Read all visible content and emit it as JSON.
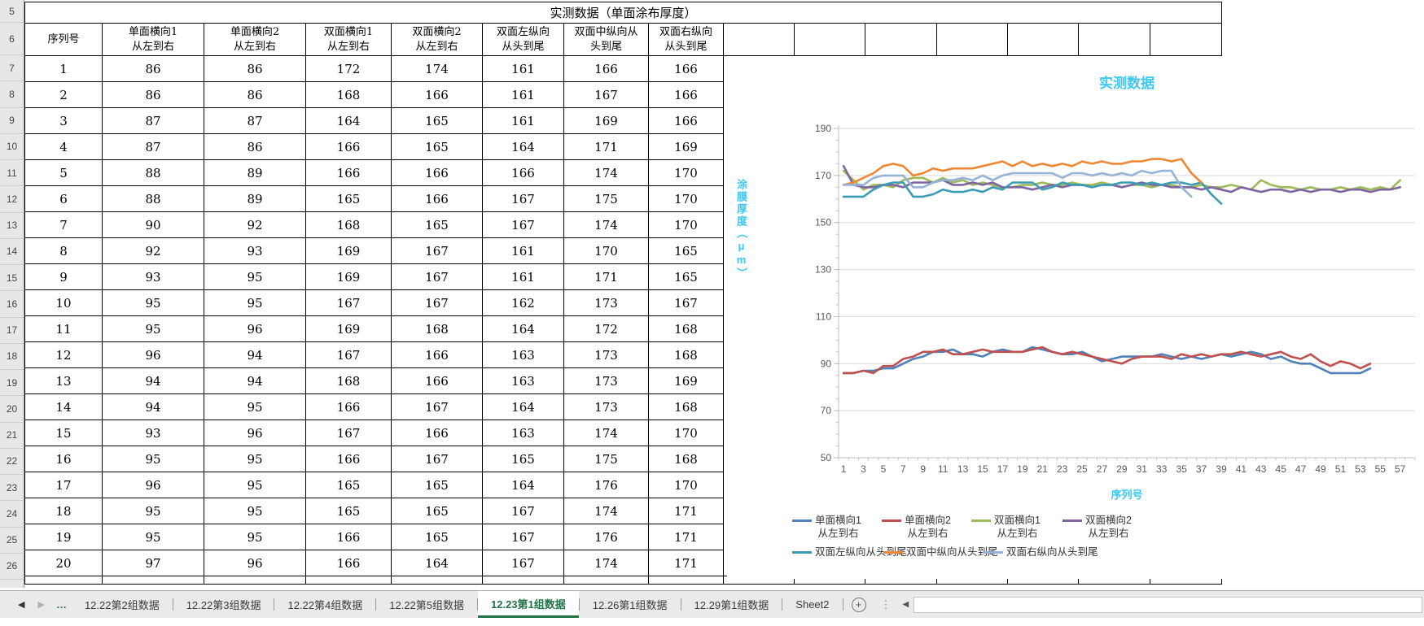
{
  "spreadsheet": {
    "title_row": "实测数据（单面涂布厚度）",
    "row_numbers": [
      "5",
      "6",
      "7",
      "8",
      "9",
      "10",
      "11",
      "12",
      "13",
      "14",
      "15",
      "16",
      "17",
      "18",
      "19",
      "20",
      "21",
      "22",
      "23",
      "24",
      "25",
      "26"
    ],
    "columns": [
      [
        "序列号"
      ],
      [
        "单面横向1",
        "从左到右"
      ],
      [
        "单面横向2",
        "从左到右"
      ],
      [
        "双面横向1",
        "从左到右"
      ],
      [
        "双面横向2",
        "从左到右"
      ],
      [
        "双面左纵向",
        "从头到尾"
      ],
      [
        "双面中纵向从",
        "头到尾"
      ],
      [
        "双面右纵向",
        "从头到尾"
      ]
    ],
    "rows": [
      [
        1,
        86,
        86,
        172,
        174,
        161,
        166,
        166
      ],
      [
        2,
        86,
        86,
        168,
        166,
        161,
        167,
        166
      ],
      [
        3,
        87,
        87,
        164,
        165,
        161,
        169,
        166
      ],
      [
        4,
        87,
        86,
        166,
        165,
        164,
        171,
        169
      ],
      [
        5,
        88,
        89,
        166,
        166,
        166,
        174,
        170
      ],
      [
        6,
        88,
        89,
        165,
        166,
        167,
        175,
        170
      ],
      [
        7,
        90,
        92,
        168,
        165,
        167,
        174,
        170
      ],
      [
        8,
        92,
        93,
        169,
        167,
        161,
        170,
        165
      ],
      [
        9,
        93,
        95,
        169,
        167,
        161,
        171,
        165
      ],
      [
        10,
        95,
        95,
        167,
        167,
        162,
        173,
        167
      ],
      [
        11,
        95,
        96,
        169,
        168,
        164,
        172,
        168
      ],
      [
        12,
        96,
        94,
        167,
        166,
        163,
        173,
        168
      ],
      [
        13,
        94,
        94,
        168,
        166,
        163,
        173,
        169
      ],
      [
        14,
        94,
        95,
        166,
        167,
        164,
        173,
        168
      ],
      [
        15,
        93,
        96,
        167,
        166,
        163,
        174,
        170
      ],
      [
        16,
        95,
        95,
        166,
        167,
        165,
        175,
        168
      ],
      [
        17,
        96,
        95,
        165,
        165,
        164,
        176,
        170
      ],
      [
        18,
        95,
        95,
        165,
        165,
        167,
        174,
        171
      ],
      [
        19,
        95,
        95,
        166,
        165,
        167,
        176,
        171
      ],
      [
        20,
        97,
        96,
        166,
        164,
        167,
        174,
        171
      ]
    ]
  },
  "chart_data": {
    "type": "line",
    "title": "实测数据",
    "xlabel": "序列号",
    "ylabel": "涂膜厚度（μm）",
    "ylim": [
      50,
      190
    ],
    "ytick_step": 20,
    "yticks": [
      50,
      70,
      90,
      110,
      130,
      150,
      170,
      190
    ],
    "x_range": [
      1,
      58
    ],
    "xtick_labels_every": 2,
    "grid": true,
    "legend_position": "bottom",
    "series": [
      {
        "name": "单面横向1 从左到右",
        "legend_lines": [
          "单面横向1",
          "从左到右"
        ],
        "color": "#4F81BD",
        "values": [
          86,
          86,
          87,
          87,
          88,
          88,
          90,
          92,
          93,
          95,
          95,
          96,
          94,
          94,
          93,
          95,
          96,
          95,
          95,
          97,
          96,
          95,
          94,
          94,
          95,
          93,
          91,
          92,
          93,
          93,
          93,
          93,
          94,
          93,
          92,
          93,
          92,
          93,
          94,
          93,
          94,
          95,
          94,
          92,
          93,
          91,
          90,
          90,
          88,
          86,
          86,
          86,
          86,
          88
        ]
      },
      {
        "name": "单面横向2 从左到右",
        "legend_lines": [
          "单面横向2",
          "从左到右"
        ],
        "color": "#C0504D",
        "values": [
          86,
          86,
          87,
          86,
          89,
          89,
          92,
          93,
          95,
          95,
          96,
          94,
          94,
          95,
          96,
          95,
          95,
          95,
          95,
          96,
          97,
          95,
          94,
          95,
          94,
          93,
          92,
          91,
          90,
          92,
          93,
          93,
          93,
          92,
          94,
          93,
          94,
          93,
          94,
          94,
          95,
          94,
          93,
          94,
          95,
          93,
          92,
          94,
          91,
          89,
          91,
          90,
          88,
          90
        ]
      },
      {
        "name": "双面横向1 从左到右",
        "legend_lines": [
          "双面横向1",
          "从左到右"
        ],
        "color": "#9BBB59",
        "values": [
          172,
          168,
          164,
          166,
          166,
          165,
          168,
          169,
          169,
          167,
          169,
          167,
          168,
          166,
          167,
          166,
          165,
          165,
          166,
          166,
          167,
          166,
          166,
          167,
          166,
          166,
          167,
          166,
          165,
          166,
          166,
          165,
          166,
          166,
          165,
          165,
          166,
          165,
          165,
          166,
          165,
          164,
          168,
          166,
          165,
          165,
          164,
          165,
          164,
          164,
          165,
          164,
          165,
          164,
          165,
          164,
          168
        ]
      },
      {
        "name": "双面横向2 从左到右",
        "legend_lines": [
          "双面横向2",
          "从左到右"
        ],
        "color": "#8064A2",
        "values": [
          174,
          166,
          165,
          165,
          166,
          166,
          165,
          167,
          167,
          167,
          168,
          166,
          166,
          167,
          166,
          167,
          165,
          165,
          165,
          164,
          165,
          166,
          165,
          166,
          166,
          165,
          166,
          166,
          165,
          166,
          167,
          166,
          166,
          165,
          165,
          165,
          164,
          165,
          164,
          163,
          165,
          164,
          163,
          164,
          164,
          163,
          164,
          163,
          164,
          164,
          163,
          164,
          164,
          163,
          164,
          164,
          165
        ]
      },
      {
        "name": "双面左纵向从头到尾",
        "legend_lines": [
          "双面左纵向从头到尾"
        ],
        "color": "#3C9CB4",
        "values": [
          161,
          161,
          161,
          164,
          166,
          167,
          167,
          161,
          161,
          162,
          164,
          163,
          163,
          164,
          163,
          165,
          164,
          167,
          167,
          167,
          164,
          165,
          167,
          166,
          166,
          165,
          166,
          166,
          167,
          167,
          166,
          167,
          166,
          167,
          167,
          166,
          167,
          162,
          158
        ]
      },
      {
        "name": "双面中纵向从头到尾",
        "legend_lines": [
          "双面中纵向从头到尾"
        ],
        "color": "#ED8733",
        "values": [
          166,
          167,
          169,
          171,
          174,
          175,
          174,
          170,
          171,
          173,
          172,
          173,
          173,
          173,
          174,
          175,
          176,
          174,
          176,
          174,
          175,
          174,
          175,
          174,
          176,
          175,
          176,
          175,
          175,
          176,
          176,
          177,
          177,
          176,
          177,
          171,
          167
        ]
      },
      {
        "name": "双面右纵向从头到尾",
        "legend_lines": [
          "双面右纵向从头到尾"
        ],
        "color": "#95B3D7",
        "values": [
          166,
          166,
          166,
          169,
          170,
          170,
          170,
          165,
          165,
          167,
          168,
          168,
          169,
          168,
          170,
          168,
          170,
          171,
          171,
          171,
          171,
          171,
          169,
          171,
          171,
          170,
          171,
          170,
          171,
          170,
          172,
          171,
          172,
          172,
          165,
          161
        ]
      }
    ]
  },
  "tab_bar": {
    "nav_left": "◀",
    "nav_right": "▶",
    "overflow": "…",
    "tabs": [
      {
        "label": "12.22第2组数据",
        "active": false
      },
      {
        "label": "12.22第3组数据",
        "active": false
      },
      {
        "label": "12.22第4组数据",
        "active": false
      },
      {
        "label": "12.22第5组数据",
        "active": false
      },
      {
        "label": "12.23第1组数据",
        "active": true
      },
      {
        "label": "12.26第1组数据",
        "active": false
      },
      {
        "label": "12.29第1组数据",
        "active": false
      },
      {
        "label": "Sheet2",
        "active": false
      }
    ],
    "add_sheet": "+",
    "kebab": "⋮",
    "scroll_left": "◀"
  },
  "colors": {
    "accent_cyan": "#3EC7F3",
    "tab_green": "#217346",
    "grid_line": "#D9D9D9",
    "axis_line": "#BFBFBF",
    "tick_text": "#595959"
  }
}
